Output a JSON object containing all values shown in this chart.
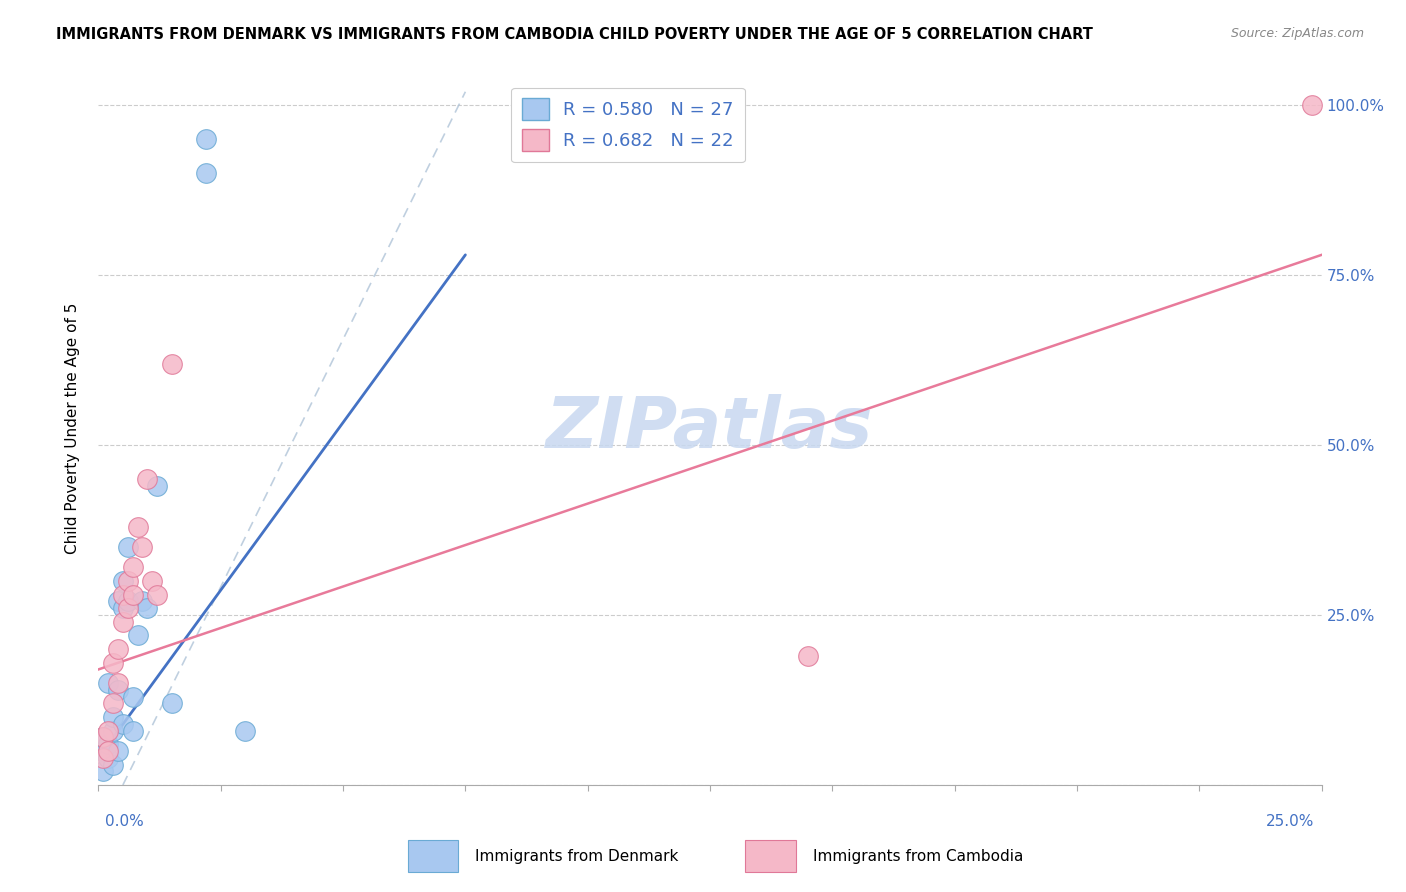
{
  "title": "IMMIGRANTS FROM DENMARK VS IMMIGRANTS FROM CAMBODIA CHILD POVERTY UNDER THE AGE OF 5 CORRELATION CHART",
  "source": "Source: ZipAtlas.com",
  "ylabel": "Child Poverty Under the Age of 5",
  "xlim": [
    0.0,
    0.25
  ],
  "ylim": [
    0.0,
    1.05
  ],
  "yticks": [
    0.0,
    0.25,
    0.5,
    0.75,
    1.0
  ],
  "ytick_labels": [
    "",
    "25.0%",
    "50.0%",
    "75.0%",
    "100.0%"
  ],
  "denmark_color": "#a8c8f0",
  "denmark_edge": "#6aaad4",
  "cambodia_color": "#f5b8c8",
  "cambodia_edge": "#e07898",
  "denmark_R": 0.58,
  "denmark_N": 27,
  "cambodia_R": 0.682,
  "cambodia_N": 22,
  "watermark": "ZIPatlas",
  "watermark_color": "#c8d8f0",
  "denmark_line_x": [
    0.0,
    0.075
  ],
  "denmark_line_y": [
    0.04,
    0.78
  ],
  "cambodia_line_x": [
    0.0,
    0.25
  ],
  "cambodia_line_y": [
    0.17,
    0.78
  ],
  "dash_line_x": [
    0.022,
    0.075
  ],
  "dash_line_y": [
    0.0,
    1.0
  ],
  "denmark_points": [
    [
      0.001,
      0.02
    ],
    [
      0.001,
      0.05
    ],
    [
      0.001,
      0.07
    ],
    [
      0.002,
      0.04
    ],
    [
      0.002,
      0.06
    ],
    [
      0.002,
      0.15
    ],
    [
      0.003,
      0.03
    ],
    [
      0.003,
      0.08
    ],
    [
      0.003,
      0.1
    ],
    [
      0.004,
      0.05
    ],
    [
      0.004,
      0.14
    ],
    [
      0.004,
      0.27
    ],
    [
      0.005,
      0.09
    ],
    [
      0.005,
      0.26
    ],
    [
      0.005,
      0.3
    ],
    [
      0.006,
      0.27
    ],
    [
      0.006,
      0.35
    ],
    [
      0.007,
      0.13
    ],
    [
      0.007,
      0.08
    ],
    [
      0.008,
      0.22
    ],
    [
      0.009,
      0.27
    ],
    [
      0.01,
      0.26
    ],
    [
      0.012,
      0.44
    ],
    [
      0.015,
      0.12
    ],
    [
      0.022,
      0.9
    ],
    [
      0.022,
      0.95
    ],
    [
      0.03,
      0.08
    ]
  ],
  "cambodia_points": [
    [
      0.001,
      0.04
    ],
    [
      0.001,
      0.07
    ],
    [
      0.002,
      0.05
    ],
    [
      0.002,
      0.08
    ],
    [
      0.003,
      0.12
    ],
    [
      0.003,
      0.18
    ],
    [
      0.004,
      0.15
    ],
    [
      0.004,
      0.2
    ],
    [
      0.005,
      0.24
    ],
    [
      0.005,
      0.28
    ],
    [
      0.006,
      0.26
    ],
    [
      0.006,
      0.3
    ],
    [
      0.007,
      0.28
    ],
    [
      0.007,
      0.32
    ],
    [
      0.008,
      0.38
    ],
    [
      0.009,
      0.35
    ],
    [
      0.01,
      0.45
    ],
    [
      0.011,
      0.3
    ],
    [
      0.012,
      0.28
    ],
    [
      0.015,
      0.62
    ],
    [
      0.145,
      0.19
    ],
    [
      0.248,
      1.0
    ]
  ],
  "xtick_positions": [
    0.0,
    0.025,
    0.05,
    0.075,
    0.1,
    0.125,
    0.15,
    0.175,
    0.2,
    0.225,
    0.25
  ]
}
